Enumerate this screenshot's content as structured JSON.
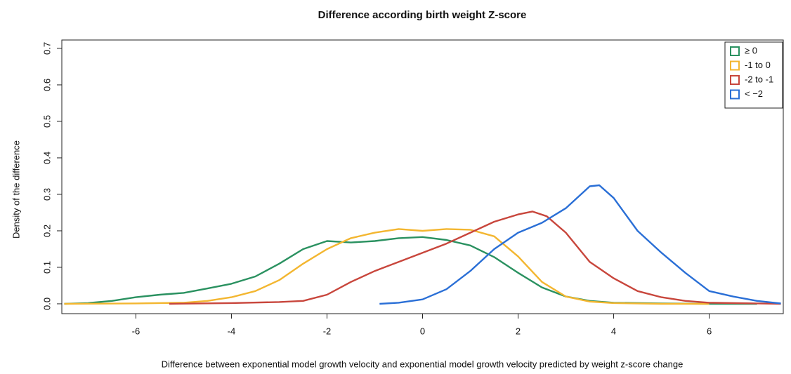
{
  "chart_data": {
    "type": "line",
    "title": "Difference according birth weight Z-score",
    "x_label": "Difference between exponential model growth velocity and exponential model growth velocity predicted by weight z-score change",
    "y_label": "Density of the difference",
    "xlim": [
      -7.55,
      7.55
    ],
    "ylim": [
      -0.027,
      0.723
    ],
    "xticks": [
      -6,
      -4,
      -2,
      0,
      2,
      4,
      6
    ],
    "yticks": [
      {
        "value": 0,
        "label": "0.0"
      },
      0.1,
      0.2,
      0.3,
      0.4,
      0.5,
      0.6,
      0.7
    ],
    "legend": "top-right",
    "series": [
      {
        "name": "≥ 0",
        "color": "#2a9160",
        "x": [
          -7.5,
          -7,
          -6.5,
          -6,
          -5.5,
          -5,
          -4.5,
          -4,
          -3.5,
          -3,
          -2.5,
          -2,
          -1.5,
          -1,
          -0.5,
          0,
          0.5,
          1,
          1.5,
          2,
          2.5,
          3,
          3.5,
          4,
          5,
          6,
          7
        ],
        "values": [
          0.0,
          0.002,
          0.008,
          0.018,
          0.025,
          0.03,
          0.042,
          0.055,
          0.075,
          0.11,
          0.15,
          0.172,
          0.168,
          0.172,
          0.18,
          0.183,
          0.175,
          0.16,
          0.128,
          0.085,
          0.045,
          0.02,
          0.008,
          0.003,
          0.001,
          0.0,
          0.0
        ]
      },
      {
        "name": "-1 to 0",
        "color": "#f3b630",
        "x": [
          -7.5,
          -6,
          -5,
          -4.5,
          -4,
          -3.5,
          -3,
          -2.5,
          -2,
          -1.5,
          -1,
          -0.5,
          0,
          0.5,
          1,
          1.5,
          2,
          2.5,
          3,
          3.5,
          4,
          5,
          6
        ],
        "values": [
          0.0,
          0.001,
          0.003,
          0.008,
          0.018,
          0.035,
          0.065,
          0.11,
          0.15,
          0.18,
          0.195,
          0.205,
          0.2,
          0.205,
          0.203,
          0.185,
          0.13,
          0.06,
          0.02,
          0.006,
          0.002,
          0.0,
          0.0
        ]
      },
      {
        "name": "-2 to -1",
        "color": "#c8463c",
        "x": [
          -5.3,
          -4,
          -3,
          -2.5,
          -2,
          -1.5,
          -1,
          -0.5,
          0,
          0.5,
          1,
          1.5,
          2,
          2.3,
          2.6,
          3,
          3.5,
          4,
          4.5,
          5,
          5.5,
          6,
          7,
          7.5
        ],
        "values": [
          0.0,
          0.002,
          0.005,
          0.008,
          0.025,
          0.06,
          0.09,
          0.115,
          0.14,
          0.165,
          0.195,
          0.225,
          0.245,
          0.253,
          0.24,
          0.195,
          0.115,
          0.07,
          0.035,
          0.018,
          0.008,
          0.003,
          0.001,
          0.0
        ]
      },
      {
        "name": "< −2",
        "color": "#2a6fd6",
        "x": [
          -0.9,
          -0.5,
          0,
          0.5,
          1,
          1.5,
          2,
          2.5,
          3,
          3.5,
          3.7,
          4,
          4.5,
          5,
          5.5,
          6,
          6.5,
          7,
          7.5
        ],
        "values": [
          0.0,
          0.003,
          0.012,
          0.04,
          0.09,
          0.15,
          0.195,
          0.222,
          0.262,
          0.322,
          0.325,
          0.29,
          0.2,
          0.14,
          0.085,
          0.035,
          0.02,
          0.008,
          0.001
        ]
      }
    ]
  }
}
